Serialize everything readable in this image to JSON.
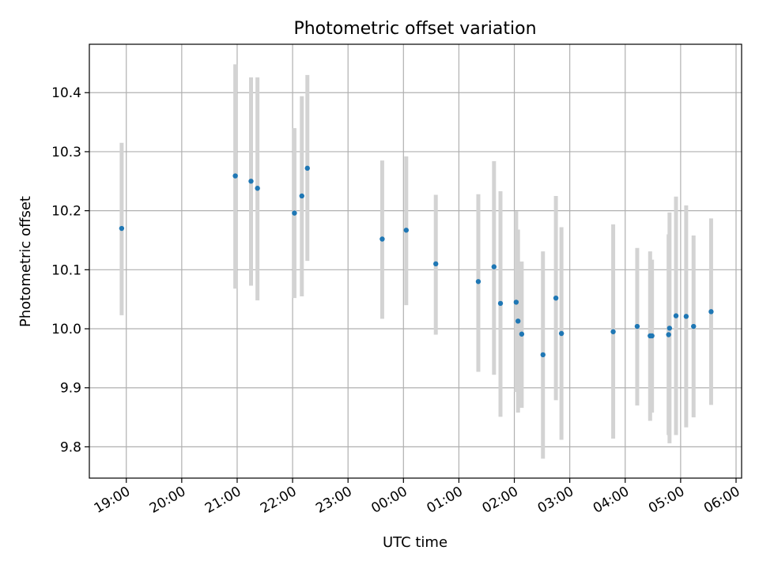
{
  "chart_data": {
    "type": "scatter",
    "title": "Photometric offset variation",
    "xlabel": "UTC time",
    "ylabel": "Photometric offset",
    "x_axis": {
      "kind": "time",
      "xlim": [
        "18:20",
        "06:06"
      ],
      "ticks": [
        "19:00",
        "20:00",
        "21:00",
        "22:00",
        "23:00",
        "00:00",
        "01:00",
        "02:00",
        "03:00",
        "04:00",
        "05:00",
        "06:00"
      ]
    },
    "y_axis": {
      "ylim": [
        9.747,
        10.482
      ],
      "ticks": [
        "9.8",
        "9.9",
        "10.0",
        "10.1",
        "10.2",
        "10.3",
        "10.4"
      ]
    },
    "grid": true,
    "colors": {
      "marker": "#1f77b4",
      "errorbar": "#d3d3d3",
      "grid": "#b0b0b0"
    },
    "points": [
      {
        "x": "18:55",
        "y": 10.17,
        "lo": 10.023,
        "hi": 10.315
      },
      {
        "x": "20:58",
        "y": 10.259,
        "lo": 10.068,
        "hi": 10.448
      },
      {
        "x": "21:15",
        "y": 10.25,
        "lo": 10.073,
        "hi": 10.426
      },
      {
        "x": "21:22",
        "y": 10.238,
        "lo": 10.048,
        "hi": 10.426
      },
      {
        "x": "22:02",
        "y": 10.196,
        "lo": 10.052,
        "hi": 10.34
      },
      {
        "x": "22:10",
        "y": 10.225,
        "lo": 10.055,
        "hi": 10.394
      },
      {
        "x": "22:16",
        "y": 10.272,
        "lo": 10.115,
        "hi": 10.43
      },
      {
        "x": "23:37",
        "y": 10.152,
        "lo": 10.017,
        "hi": 10.285
      },
      {
        "x": "00:03",
        "y": 10.167,
        "lo": 10.04,
        "hi": 10.292
      },
      {
        "x": "00:35",
        "y": 10.11,
        "lo": 9.99,
        "hi": 10.227
      },
      {
        "x": "01:21",
        "y": 10.08,
        "lo": 9.927,
        "hi": 10.228
      },
      {
        "x": "01:38",
        "y": 10.105,
        "lo": 9.922,
        "hi": 10.284
      },
      {
        "x": "01:45",
        "y": 10.043,
        "lo": 9.851,
        "hi": 10.233
      },
      {
        "x": "02:02",
        "y": 10.045,
        "lo": 9.893,
        "hi": 10.199
      },
      {
        "x": "02:04",
        "y": 10.013,
        "lo": 9.858,
        "hi": 10.168
      },
      {
        "x": "02:08",
        "y": 9.991,
        "lo": 9.866,
        "hi": 10.114
      },
      {
        "x": "02:31",
        "y": 9.956,
        "lo": 9.78,
        "hi": 10.131
      },
      {
        "x": "02:45",
        "y": 10.052,
        "lo": 9.879,
        "hi": 10.225
      },
      {
        "x": "02:51",
        "y": 9.992,
        "lo": 9.812,
        "hi": 10.172
      },
      {
        "x": "03:47",
        "y": 9.995,
        "lo": 9.814,
        "hi": 10.177
      },
      {
        "x": "04:13",
        "y": 10.004,
        "lo": 9.87,
        "hi": 10.137
      },
      {
        "x": "04:27",
        "y": 9.988,
        "lo": 9.844,
        "hi": 10.131
      },
      {
        "x": "04:29",
        "y": 9.988,
        "lo": 9.858,
        "hi": 10.117
      },
      {
        "x": "04:47",
        "y": 9.99,
        "lo": 9.82,
        "hi": 10.16
      },
      {
        "x": "04:48",
        "y": 10.001,
        "lo": 9.806,
        "hi": 10.197
      },
      {
        "x": "04:55",
        "y": 10.022,
        "lo": 9.82,
        "hi": 10.224
      },
      {
        "x": "05:06",
        "y": 10.021,
        "lo": 9.833,
        "hi": 10.209
      },
      {
        "x": "05:14",
        "y": 10.004,
        "lo": 9.85,
        "hi": 10.158
      },
      {
        "x": "05:33",
        "y": 10.029,
        "lo": 9.871,
        "hi": 10.187
      }
    ]
  }
}
